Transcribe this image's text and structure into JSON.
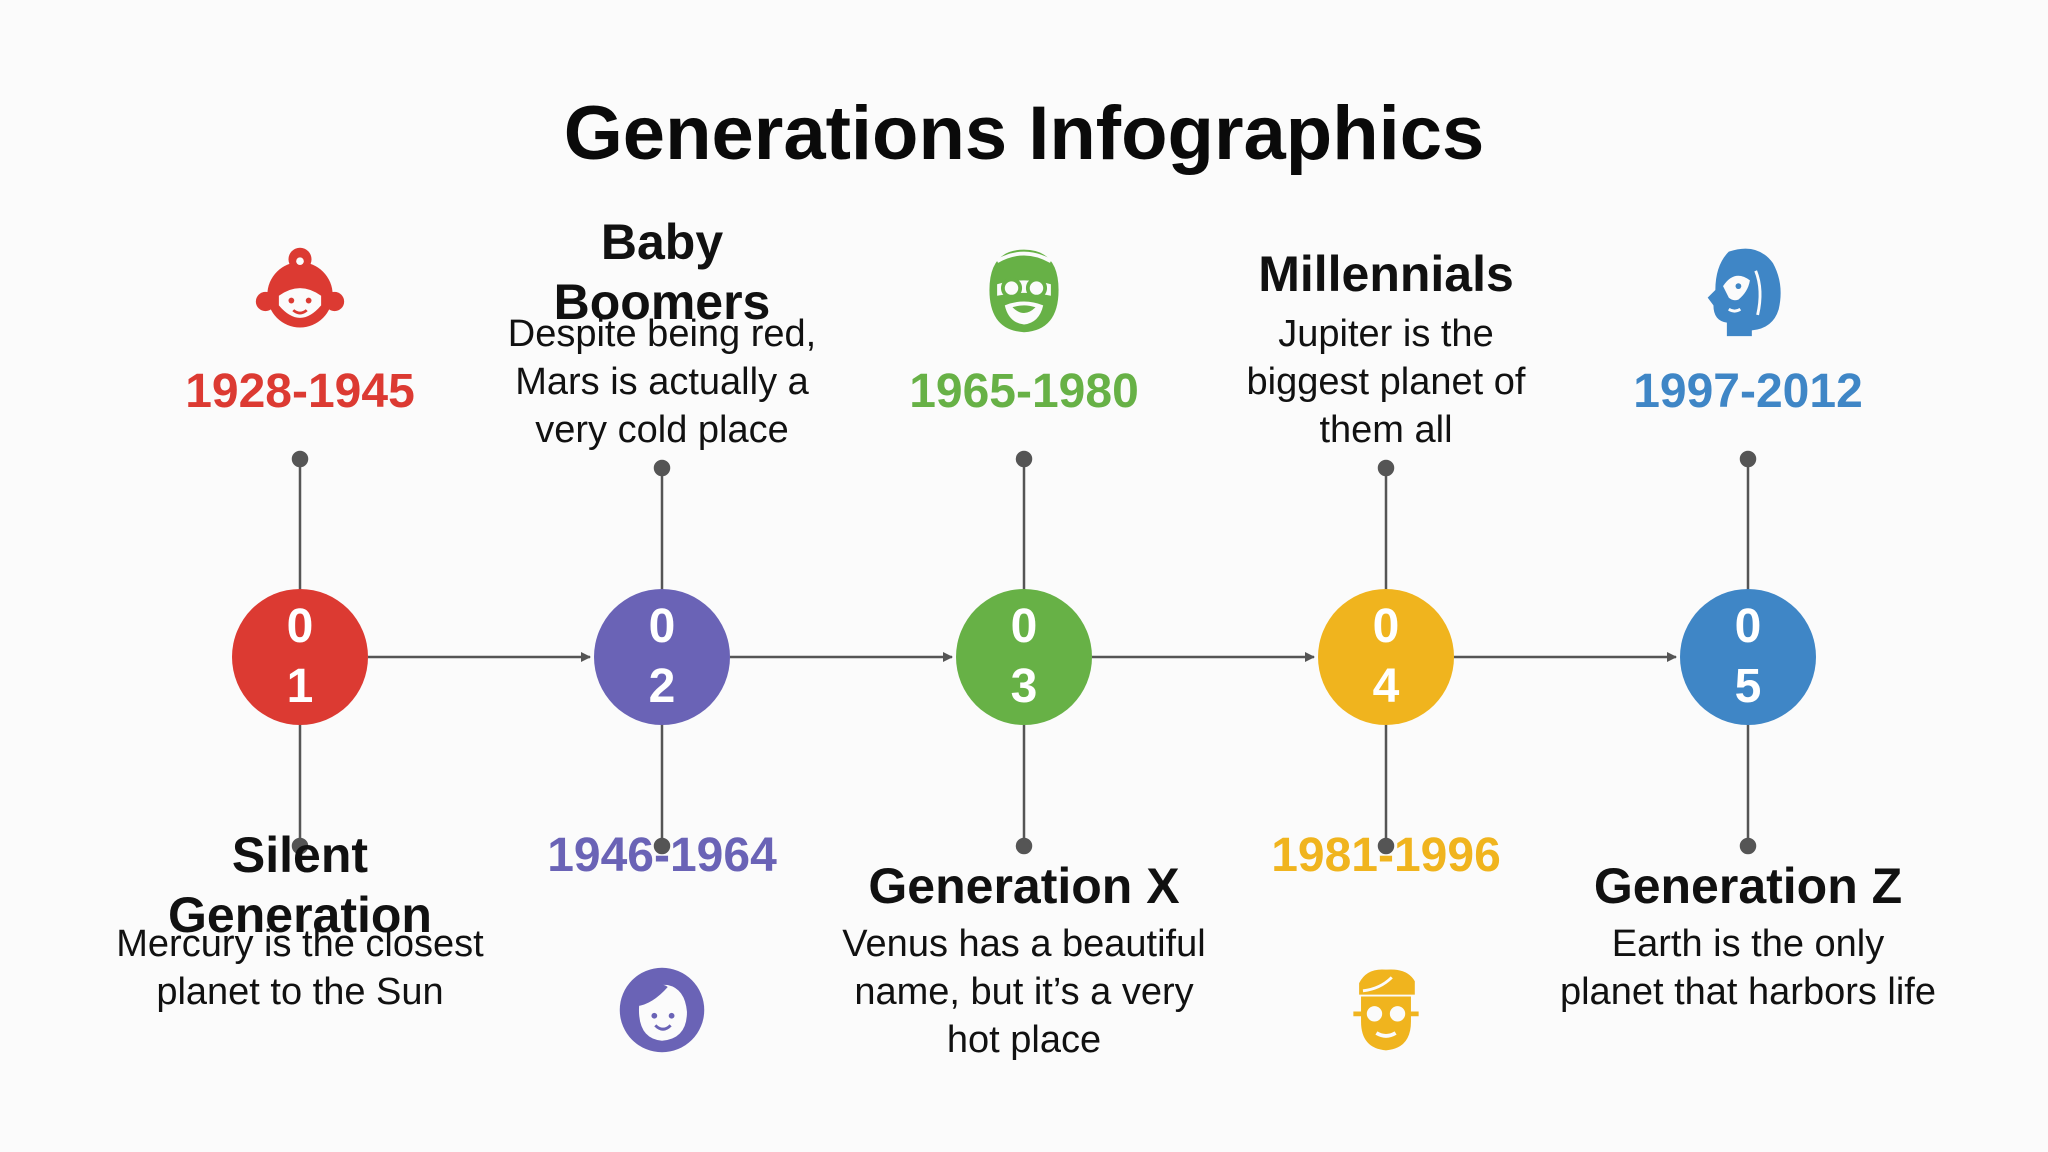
{
  "title": "Generations Infographics",
  "steps": [
    {
      "number": "01",
      "name": "Silent Generation",
      "years": "1928-1945",
      "description": "Mercury is the closest planet to the Sun",
      "color": "#dc3a32",
      "icon": "grandmother-icon"
    },
    {
      "number": "02",
      "name": "Baby Boomers",
      "years": "1946-1964",
      "description": "Despite being red, Mars is actually a very cold place",
      "color": "#6a63b6",
      "icon": "woman-icon"
    },
    {
      "number": "03",
      "name": "Generation X",
      "years": "1965-1980",
      "description": "Venus has a beautiful name, but it’s a very hot place",
      "color": "#67b146",
      "icon": "man-glasses-icon"
    },
    {
      "number": "04",
      "name": "Millennials",
      "years": "1981-1996",
      "description": "Jupiter is the biggest planet of them all",
      "color": "#f0b41e",
      "icon": "young-man-glasses-icon"
    },
    {
      "number": "05",
      "name": "Generation Z",
      "years": "1997-2012",
      "description": "Earth is the only planet that harbors life",
      "color": "#3f86c6",
      "icon": "teen-profile-icon"
    }
  ]
}
